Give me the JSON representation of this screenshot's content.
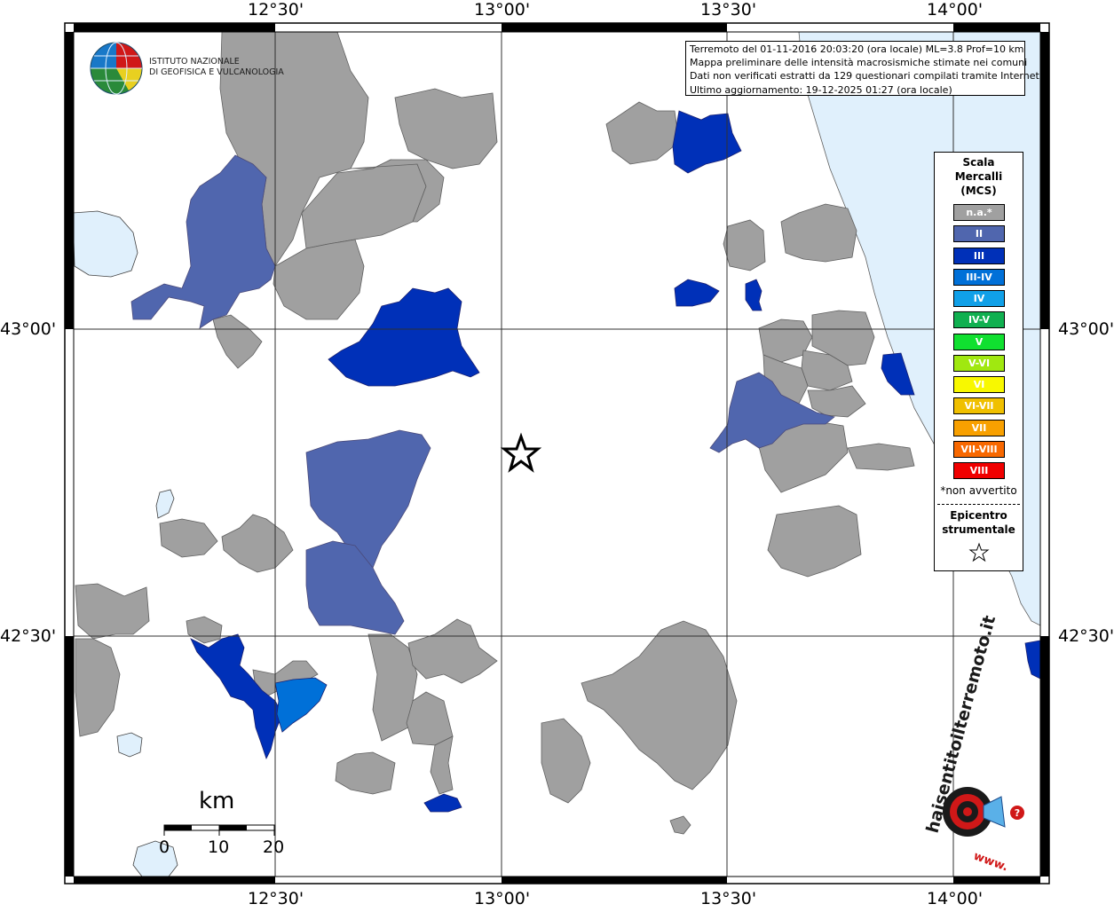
{
  "axes": {
    "top_labels": [
      "12°30'",
      "13°00'",
      "13°30'",
      "14°00'"
    ],
    "bottom_labels": [
      "12°30'",
      "13°00'",
      "13°30'",
      "14°00'"
    ],
    "left_labels": [
      "43°00'",
      "42°30'"
    ],
    "right_labels": [
      "43°00'",
      "42°30'"
    ]
  },
  "info": {
    "line1": "Terremoto del 01-11-2016 20:03:20 (ora locale) ML=3.8 Prof=10 km",
    "line2": "Mappa preliminare delle intensità macrosismiche stimate nei comuni",
    "line3": "Dati non verificati estratti da 129 questionari compilati tramite Internet.",
    "line4": "Ultimo aggiornamento: 19-12-2025 01:27 (ora locale)"
  },
  "logo": {
    "line1": "ISTITUTO NAZIONALE",
    "line2": "DI GEOFISICA E VULCANOLOGIA",
    "site_text": "haisentitoilterremoto.it",
    "site_prefix": "www."
  },
  "legend": {
    "title1": "Scala",
    "title2": "Mercalli",
    "title3": "(MCS)",
    "classes": [
      {
        "label": "n.a.*",
        "color": "#a0a0a0"
      },
      {
        "label": "II",
        "color": "#5066ae"
      },
      {
        "label": "III",
        "color": "#0030b8"
      },
      {
        "label": "III-IV",
        "color": "#0070d8"
      },
      {
        "label": "IV",
        "color": "#10a0e8"
      },
      {
        "label": "IV-V",
        "color": "#10b050"
      },
      {
        "label": "V",
        "color": "#10e030"
      },
      {
        "label": "V-VI",
        "color": "#a0e810"
      },
      {
        "label": "VI",
        "color": "#f8f800"
      },
      {
        "label": "VI-VII",
        "color": "#f0c000"
      },
      {
        "label": "VII",
        "color": "#f8a000"
      },
      {
        "label": "VII-VIII",
        "color": "#f86800"
      },
      {
        "label": "VIII",
        "color": "#f00000"
      }
    ],
    "note": "*non avvertito",
    "epicenter_line1": "Epicentro",
    "epicenter_line2": "strumentale"
  },
  "scalebar": {
    "unit": "km",
    "ticks": [
      "0",
      "10",
      "20"
    ]
  },
  "colors": {
    "sea": "#e0f0fc",
    "na": "#a0a0a0",
    "ii": "#5066ae",
    "iii": "#0030b8",
    "iii_iv": "#0070d8"
  }
}
